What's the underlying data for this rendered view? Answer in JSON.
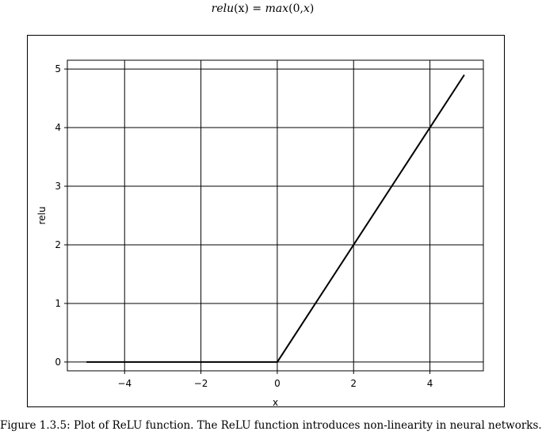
{
  "formula": {
    "lhs_name": "relu",
    "lhs_arg": "(x)",
    "equals": " = ",
    "rhs_name": "max",
    "rhs_arg_pre": "(0,",
    "rhs_arg_var": "x",
    "rhs_arg_post": ")"
  },
  "chart_data": {
    "type": "line",
    "title": "",
    "xlabel": "x",
    "ylabel": "relu",
    "xlim": [
      -5.5,
      5.4
    ],
    "ylim": [
      -0.15,
      5.15
    ],
    "xticks": [
      -4,
      -2,
      0,
      2,
      4
    ],
    "xtick_labels": [
      "−4",
      "−2",
      "0",
      "2",
      "4"
    ],
    "yticks": [
      0,
      1,
      2,
      3,
      4,
      5
    ],
    "ytick_labels": [
      "0",
      "1",
      "2",
      "3",
      "4",
      "5"
    ],
    "grid": true,
    "legend": "none",
    "series": [
      {
        "x": [
          -5,
          0,
          4.9
        ],
        "y": [
          0,
          0,
          4.9
        ],
        "color": "#000000"
      }
    ]
  },
  "caption": "Figure 1.3.5: Plot of ReLU function. The ReLU function introduces non-linearity in neural networks."
}
